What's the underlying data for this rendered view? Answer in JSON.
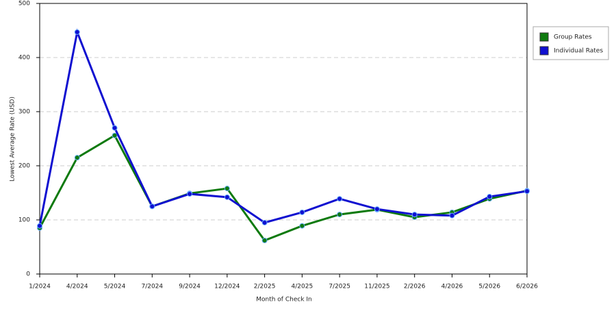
{
  "chart_data": {
    "type": "line",
    "x_label": "Month of Check In",
    "y_label": "Lowest Average Rate (USD)",
    "categories": [
      "1/2024",
      "4/2024",
      "5/2024",
      "7/2024",
      "9/2024",
      "12/2024",
      "2/2025",
      "4/2025",
      "7/2025",
      "11/2025",
      "2/2026",
      "4/2026",
      "5/2026",
      "6/2026"
    ],
    "series": [
      {
        "name": "Group Rates",
        "color": "#0e7a0e",
        "values": [
          85,
          215,
          256,
          125,
          149,
          158,
          62,
          89,
          110,
          119,
          105,
          114,
          139,
          154
        ]
      },
      {
        "name": "Individual Rates",
        "color": "#1010d0",
        "values": [
          89,
          447,
          270,
          125,
          148,
          142,
          95,
          114,
          139,
          120,
          110,
          108,
          143,
          153
        ]
      }
    ],
    "ylim": [
      0,
      500
    ],
    "yticks": [
      0,
      100,
      200,
      300,
      400,
      500
    ],
    "grid": true,
    "legend": "right"
  }
}
